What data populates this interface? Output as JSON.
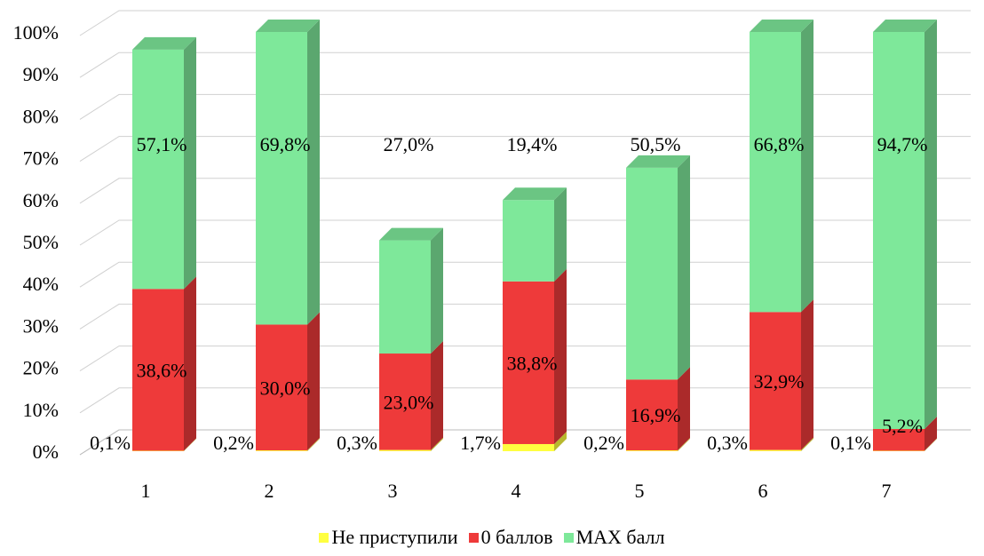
{
  "chart_data": {
    "type": "bar",
    "stacked": true,
    "percent": true,
    "three_d": true,
    "categories": [
      "1",
      "2",
      "3",
      "4",
      "5",
      "6",
      "7"
    ],
    "series": [
      {
        "name": "Не приступили",
        "color": "#ffff40",
        "values": [
          0.1,
          0.2,
          0.3,
          1.7,
          0.2,
          0.3,
          0.1
        ],
        "labels": [
          "0,1%",
          "0,2%",
          "0,3%",
          "1,7%",
          "0,2%",
          "0,3%",
          "0,1%"
        ]
      },
      {
        "name": "0 баллов",
        "color": "#ee3a3a",
        "values": [
          38.6,
          30.0,
          23.0,
          38.8,
          16.9,
          32.9,
          5.2
        ],
        "labels": [
          "38,6%",
          "30,0%",
          "23,0%",
          "38,8%",
          "16,9%",
          "32,9%",
          "5,2%"
        ]
      },
      {
        "name": "MAX балл",
        "color": "#7ee89a",
        "values": [
          57.1,
          69.8,
          27.0,
          19.4,
          50.5,
          66.8,
          94.7
        ],
        "labels": [
          "57,1%",
          "69,8%",
          "27,0%",
          "19,4%",
          "50,5%",
          "66,8%",
          "94,7%"
        ]
      }
    ],
    "y_ticks": [
      "0%",
      "10%",
      "20%",
      "30%",
      "40%",
      "50%",
      "60%",
      "70%",
      "80%",
      "90%",
      "100%"
    ],
    "ylim": [
      0,
      100
    ],
    "grid": true,
    "legend_position": "bottom"
  }
}
